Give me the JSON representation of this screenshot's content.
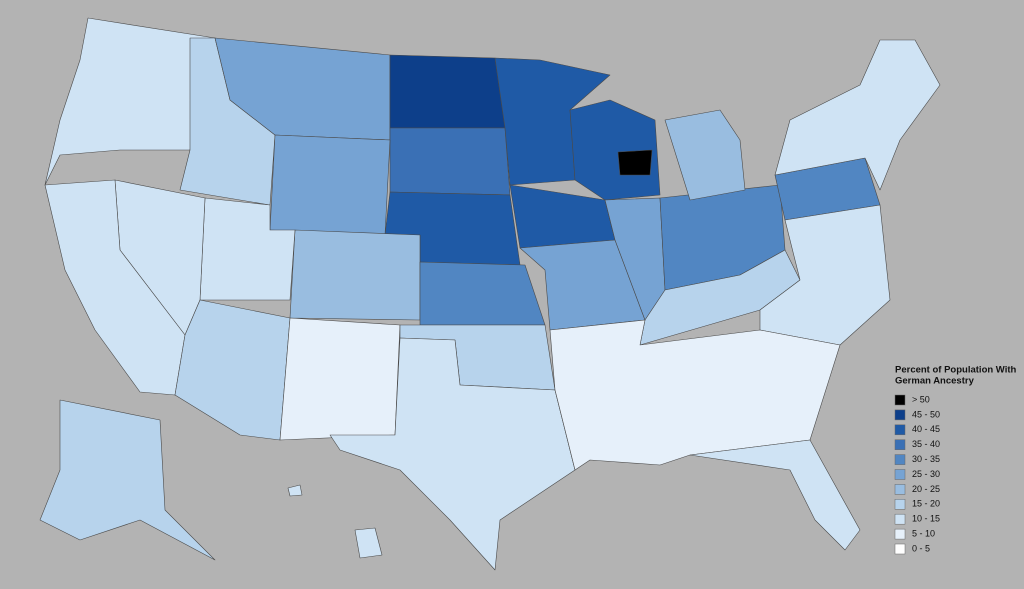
{
  "legend": {
    "title": [
      "Percent of Population With",
      "German Ancestry"
    ],
    "items": [
      {
        "label": "> 50",
        "color": "#000000"
      },
      {
        "label": "45 - 50",
        "color": "#0d3f8a"
      },
      {
        "label": "40 - 45",
        "color": "#1f5aa6"
      },
      {
        "label": "35 - 40",
        "color": "#3a70b5"
      },
      {
        "label": "30 - 35",
        "color": "#5186c2"
      },
      {
        "label": "25 - 30",
        "color": "#76a3d3"
      },
      {
        "label": "20 - 25",
        "color": "#99bde0"
      },
      {
        "label": "15 - 20",
        "color": "#b7d3ec"
      },
      {
        "label": "10 - 15",
        "color": "#cfe3f4"
      },
      {
        "label": "5 - 10",
        "color": "#e6f0fa"
      },
      {
        "label": "0 - 5",
        "color": "#ffffff"
      }
    ]
  }
}
